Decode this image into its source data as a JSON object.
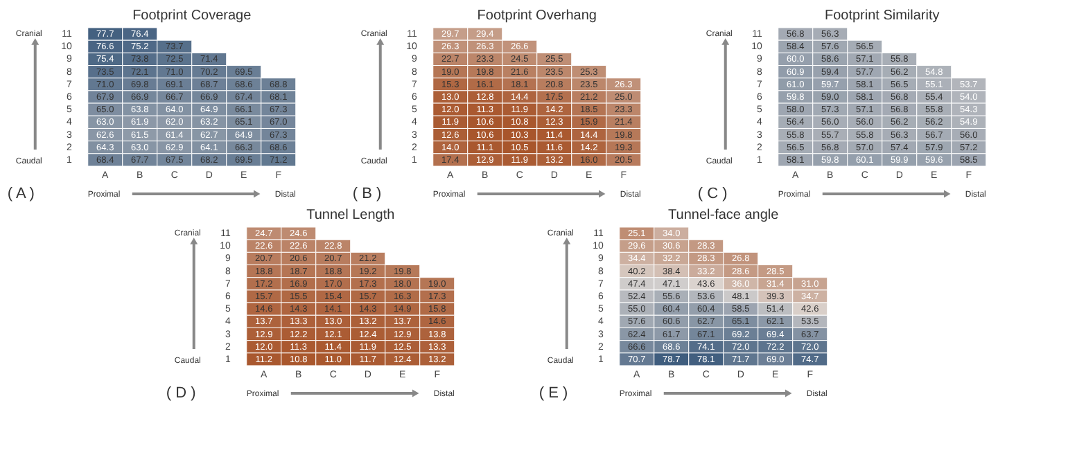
{
  "chart_data": [
    {
      "type": "heatmap",
      "title": "Footprint Coverage",
      "categories": [
        "A",
        "B",
        "C",
        "D",
        "E",
        "F"
      ],
      "y_categories": [
        "11",
        "10",
        "9",
        "8",
        "7",
        "6",
        "5",
        "4",
        "3",
        "2",
        "1"
      ],
      "grid": false,
      "annotations": [
        "Cranial",
        "Caudal",
        "Proximal",
        "Distal",
        "( A )"
      ],
      "cells": [
        [
          77.7,
          76.4,
          null,
          null,
          null,
          null
        ],
        [
          76.6,
          75.2,
          73.7,
          null,
          null,
          null
        ],
        [
          75.4,
          73.8,
          72.5,
          71.4,
          null,
          null
        ],
        [
          73.5,
          72.1,
          71.0,
          70.2,
          69.5,
          null
        ],
        [
          71.0,
          69.8,
          69.1,
          68.7,
          68.6,
          68.8
        ],
        [
          67.9,
          66.9,
          66.7,
          66.9,
          67.4,
          68.1
        ],
        [
          65.0,
          63.8,
          64.0,
          64.9,
          66.1,
          67.3
        ],
        [
          63.0,
          61.9,
          62.0,
          63.2,
          65.1,
          67.0
        ],
        [
          62.6,
          61.5,
          61.4,
          62.7,
          64.9,
          67.3
        ],
        [
          64.3,
          63.0,
          62.9,
          64.1,
          66.3,
          68.6
        ],
        [
          68.4,
          67.7,
          67.5,
          68.2,
          69.5,
          71.2
        ]
      ],
      "cell_labels": [
        [
          "77.7",
          "76.4",
          null,
          null,
          null,
          null
        ],
        [
          "76.6",
          "75.2",
          "73.7",
          null,
          null,
          null
        ],
        [
          "75.4",
          "73.8",
          "72.5",
          "71.4",
          null,
          null
        ],
        [
          "73.5",
          "72.1",
          "71.0",
          "70.2",
          "69.5",
          null
        ],
        [
          "71.0",
          "69.8",
          "69.1",
          "68.7",
          "68.6",
          "68.8"
        ],
        [
          "67.9",
          "66.9",
          "66.7",
          "66.9",
          "67.4",
          "68.1"
        ],
        [
          "65.0",
          "63.8",
          "64.0",
          "64.9",
          "66.1",
          "67.3"
        ],
        [
          "63.0",
          "61.9",
          "62.0",
          "63.2",
          "65.1",
          "67.0"
        ],
        [
          "62.6",
          "61.5",
          "61.4",
          "62.7",
          "64.9",
          "67.3"
        ],
        [
          "64.3",
          "63.0",
          "62.9",
          "64.1",
          "66.3",
          "68.6"
        ],
        [
          "68.4",
          "67.7",
          "67.5",
          "68.2",
          "69.5",
          "71.2"
        ]
      ]
    },
    {
      "type": "heatmap",
      "title": "Footprint Overhang",
      "categories": [
        "A",
        "B",
        "C",
        "D",
        "E",
        "F"
      ],
      "y_categories": [
        "11",
        "10",
        "9",
        "8",
        "7",
        "6",
        "5",
        "4",
        "3",
        "2",
        "1"
      ],
      "grid": false,
      "annotations": [
        "Cranial",
        "Caudal",
        "Proximal",
        "Distal",
        "( B )"
      ],
      "cells": [
        [
          29.7,
          29.4,
          null,
          null,
          null,
          null
        ],
        [
          26.3,
          26.3,
          26.6,
          null,
          null,
          null
        ],
        [
          22.7,
          23.3,
          24.5,
          25.5,
          null,
          null
        ],
        [
          19.0,
          19.8,
          21.6,
          23.5,
          25.3,
          null
        ],
        [
          15.3,
          16.1,
          18.1,
          20.8,
          23.5,
          26.3
        ],
        [
          13.0,
          12.8,
          14.4,
          17.5,
          21.2,
          25.0
        ],
        [
          12.0,
          11.3,
          11.9,
          14.2,
          18.5,
          23.3
        ],
        [
          11.9,
          10.6,
          10.8,
          12.3,
          15.9,
          21.4
        ],
        [
          12.6,
          10.6,
          10.3,
          11.4,
          14.4,
          19.8
        ],
        [
          14.0,
          11.1,
          10.5,
          11.6,
          14.2,
          19.3
        ],
        [
          17.4,
          12.9,
          11.9,
          13.2,
          16.0,
          20.5
        ]
      ],
      "cell_labels": [
        [
          "29.7",
          "29.4",
          null,
          null,
          null,
          null
        ],
        [
          "26.3",
          "26.3",
          "26.6",
          null,
          null,
          null
        ],
        [
          "22.7",
          "23.3",
          "24.5",
          "25.5",
          null,
          null
        ],
        [
          "19.0",
          "19.8",
          "21.6",
          "23.5",
          "25.3",
          null
        ],
        [
          "15.3",
          "16.1",
          "18.1",
          "20.8",
          "23.5",
          "26.3"
        ],
        [
          "13.0",
          "12.8",
          "14.4",
          "17.5",
          "21.2",
          "25.0"
        ],
        [
          "12.0",
          "11.3",
          "11.9",
          "14.2",
          "18.5",
          "23.3"
        ],
        [
          "11.9",
          "10.6",
          "10.8",
          "12.3",
          "15.9",
          "21.4"
        ],
        [
          "12.6",
          "10.6",
          "10.3",
          "11.4",
          "14.4",
          "19.8"
        ],
        [
          "14.0",
          "11.1",
          "10.5",
          "11.6",
          "14.2",
          "19.3"
        ],
        [
          "17.4",
          "12.9",
          "11.9",
          "13.2",
          "16.0",
          "20.5"
        ]
      ]
    },
    {
      "type": "heatmap",
      "title": "Footprint Similarity",
      "categories": [
        "A",
        "B",
        "C",
        "D",
        "E",
        "F"
      ],
      "y_categories": [
        "11",
        "10",
        "9",
        "8",
        "7",
        "6",
        "5",
        "4",
        "3",
        "2",
        "1"
      ],
      "grid": false,
      "annotations": [
        "Cranial",
        "Caudal",
        "Proximal",
        "Distal",
        "( C )"
      ],
      "cells": [
        [
          56.8,
          56.3,
          null,
          null,
          null,
          null
        ],
        [
          58.4,
          57.6,
          56.5,
          null,
          null,
          null
        ],
        [
          60.0,
          58.6,
          57.1,
          55.8,
          null,
          null
        ],
        [
          60.9,
          59.4,
          57.7,
          56.2,
          54.8,
          null
        ],
        [
          61.0,
          59.7,
          58.1,
          56.5,
          55.1,
          53.7
        ],
        [
          59.8,
          59.0,
          58.1,
          56.8,
          55.4,
          54.0
        ],
        [
          58.0,
          57.3,
          57.1,
          56.8,
          55.8,
          54.3
        ],
        [
          56.4,
          56.0,
          56.0,
          56.2,
          56.2,
          54.9
        ],
        [
          55.8,
          55.7,
          55.8,
          56.3,
          56.7,
          56.0
        ],
        [
          56.5,
          56.8,
          57.0,
          57.4,
          57.9,
          57.2
        ],
        [
          58.1,
          59.8,
          60.1,
          59.9,
          59.6,
          58.5
        ]
      ],
      "cell_labels": [
        [
          "56.8",
          "56.3",
          null,
          null,
          null,
          null
        ],
        [
          "58.4",
          "57.6",
          "56.5",
          null,
          null,
          null
        ],
        [
          "60.0",
          "58.6",
          "57.1",
          "55.8",
          null,
          null
        ],
        [
          "60.9",
          "59.4",
          "57.7",
          "56.2",
          "54.8",
          null
        ],
        [
          "61.0",
          "59.7",
          "58.1",
          "56.5",
          "55.1",
          "53.7"
        ],
        [
          "59.8",
          "59.0",
          "58.1",
          "56.8",
          "55.4",
          "54.0"
        ],
        [
          "58.0",
          "57.3",
          "57.1",
          "56.8",
          "55.8",
          "54.3"
        ],
        [
          "56.4",
          "56.0",
          "56.0",
          "56.2",
          "56.2",
          "54.9"
        ],
        [
          "55.8",
          "55.7",
          "55.8",
          "56.3",
          "56.7",
          "56.0"
        ],
        [
          "56.5",
          "56.8",
          "57.0",
          "57.4",
          "57.9",
          "57.2"
        ],
        [
          "58.1",
          "59.8",
          "60.1",
          "59.9",
          "59.6",
          "58.5"
        ]
      ]
    },
    {
      "type": "heatmap",
      "title": "Tunnel Length",
      "categories": [
        "A",
        "B",
        "C",
        "D",
        "E",
        "F"
      ],
      "y_categories": [
        "11",
        "10",
        "9",
        "8",
        "7",
        "6",
        "5",
        "4",
        "3",
        "2",
        "1"
      ],
      "grid": false,
      "annotations": [
        "Cranial",
        "Caudal",
        "Proximal",
        "Distal",
        "( D )"
      ],
      "cells": [
        [
          24.7,
          24.6,
          null,
          null,
          null,
          null
        ],
        [
          22.6,
          22.6,
          22.8,
          null,
          null,
          null
        ],
        [
          20.7,
          20.6,
          20.7,
          21.2,
          null,
          null
        ],
        [
          18.8,
          18.7,
          18.8,
          19.2,
          19.8,
          null
        ],
        [
          17.2,
          16.9,
          17.0,
          17.3,
          18.0,
          19.0
        ],
        [
          15.7,
          15.5,
          15.4,
          15.7,
          16.3,
          17.3
        ],
        [
          14.6,
          14.3,
          14.1,
          14.3,
          14.9,
          15.8
        ],
        [
          13.7,
          13.3,
          13.0,
          13.2,
          13.7,
          14.6
        ],
        [
          12.9,
          12.2,
          12.1,
          12.4,
          12.9,
          13.8
        ],
        [
          12.0,
          11.3,
          11.4,
          11.9,
          12.5,
          13.3
        ],
        [
          11.2,
          10.8,
          11.0,
          11.7,
          12.4,
          13.2
        ]
      ],
      "cell_labels": [
        [
          "24.7",
          "24.6",
          null,
          null,
          null,
          null
        ],
        [
          "22.6",
          "22.6",
          "22.8",
          null,
          null,
          null
        ],
        [
          "20.7",
          "20.6",
          "20.7",
          "21.2",
          null,
          null
        ],
        [
          "18.8",
          "18.7",
          "18.8",
          "19.2",
          "19.8",
          null
        ],
        [
          "17.2",
          "16.9",
          "17.0",
          "17.3",
          "18.0",
          "19.0"
        ],
        [
          "15.7",
          "15.5",
          "15.4",
          "15.7",
          "16.3",
          "17.3"
        ],
        [
          "14.6",
          "14.3",
          "14.1",
          "14.3",
          "14.9",
          "15.8"
        ],
        [
          "13.7",
          "13.3",
          "13.0",
          "13.2",
          "13.7",
          "14.6"
        ],
        [
          "12.9",
          "12.2",
          "12.1",
          "12.4",
          "12.9",
          "13.8"
        ],
        [
          "12.0",
          "11.3",
          "11.4",
          "11.9",
          "12.5",
          "13.3"
        ],
        [
          "11.2",
          "10.8",
          "11.0",
          "11.7",
          "12.4",
          "13.2"
        ]
      ]
    },
    {
      "type": "heatmap",
      "title": "Tunnel-face angle",
      "categories": [
        "A",
        "B",
        "C",
        "D",
        "E",
        "F"
      ],
      "y_categories": [
        "11",
        "10",
        "9",
        "8",
        "7",
        "6",
        "5",
        "4",
        "3",
        "2",
        "1"
      ],
      "grid": false,
      "annotations": [
        "Cranial",
        "Caudal",
        "Proximal",
        "Distal",
        "( E )"
      ],
      "cells": [
        [
          25.1,
          34.0,
          null,
          null,
          null,
          null
        ],
        [
          29.6,
          30.6,
          28.3,
          null,
          null,
          null
        ],
        [
          34.4,
          32.2,
          28.3,
          26.8,
          null,
          null
        ],
        [
          40.2,
          38.4,
          33.2,
          28.6,
          28.5,
          null
        ],
        [
          47.4,
          47.1,
          43.6,
          36.0,
          31.4,
          31.0
        ],
        [
          52.4,
          55.6,
          53.6,
          48.1,
          39.3,
          34.7
        ],
        [
          55.0,
          60.4,
          60.4,
          58.5,
          51.4,
          42.6
        ],
        [
          57.6,
          60.6,
          62.7,
          65.1,
          62.1,
          53.5
        ],
        [
          62.4,
          61.7,
          67.1,
          69.2,
          69.4,
          63.7
        ],
        [
          66.6,
          68.6,
          74.1,
          72.0,
          72.2,
          72.0
        ],
        [
          70.7,
          78.7,
          78.1,
          71.7,
          69.0,
          74.7
        ]
      ],
      "cell_labels": [
        [
          "25.1",
          "34.0",
          null,
          null,
          null,
          null
        ],
        [
          "29.6",
          "30.6",
          "28.3",
          null,
          null,
          null
        ],
        [
          "34.4",
          "32.2",
          "28.3",
          "26.8",
          null,
          null
        ],
        [
          "40.2",
          "38.4",
          "33.2",
          "28.6",
          "28.5",
          null
        ],
        [
          "47.4",
          "47.1",
          "43.6",
          "36.0",
          "31.4",
          "31.0"
        ],
        [
          "52.4",
          "55.6",
          "53.6",
          "48.1",
          "39.3",
          "34.7"
        ],
        [
          "55.0",
          "60.4",
          "60.4",
          "58.5",
          "51.4",
          "42.6"
        ],
        [
          "57.6",
          "60.6",
          "62.7",
          "65.1",
          "62.1",
          "53.5"
        ],
        [
          "62.4",
          "61.7",
          "67.1",
          "69.2",
          "69.4",
          "63.7"
        ],
        [
          "66.6",
          "68.6",
          "74.1",
          "72.0",
          "72.2",
          "72.0"
        ],
        [
          "70.7",
          "78.7",
          "78.1",
          "71.7",
          "69.0",
          "74.7"
        ]
      ]
    }
  ]
}
